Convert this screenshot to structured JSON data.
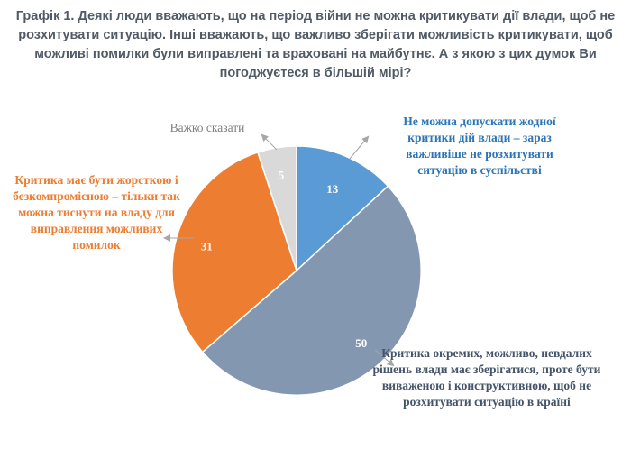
{
  "title": "Графік 1. Деякі люди вважають, що на період війни не можна критикувати дії влади, щоб не розхитувати ситуацію. Інші вважають, що важливо зберігати можливість критикувати, щоб можливі помилки були виправлені та враховані на майбутнє. А з якою з цих думок Ви погоджуєтеся в більшій мірі?",
  "chart_data": {
    "type": "pie",
    "title": "Графік 1. Деякі люди вважають, що на період війни не можна критикувати дії влади, щоб не розхитувати ситуацію. Інші вважають, що важливо зберігати можливість критикувати, щоб можливі помилки були виправлені та враховані на майбутнє. А з якою з цих думок Ви погоджуєтеся в більшій мірі?",
    "categories": [
      "Не можна допускати жодної критики дій влади – зараз важливіше не розхитувати ситуацію в суспільстві",
      "Критика окремих, можливо, невдалих рішень влади має зберігатися, проте бути виваженою і конструктивною, щоб не розхитувати ситуацію в країні",
      "Критика має бути жорсткою і безкомпромісною – тільки так можна тиснути на владу для виправлення можливих помилок",
      "Важко сказати"
    ],
    "values": [
      13,
      50,
      31,
      5
    ],
    "colors": [
      "#5b9bd5",
      "#8497b0",
      "#ed7d31",
      "#d9d9d9"
    ],
    "label_colors": [
      "#2e75b6",
      "#44546a",
      "#ed7d31",
      "#7f7f7f"
    ],
    "start_angle": "12 o'clock",
    "direction": "clockwise",
    "data_labels": true,
    "legend": "none"
  }
}
